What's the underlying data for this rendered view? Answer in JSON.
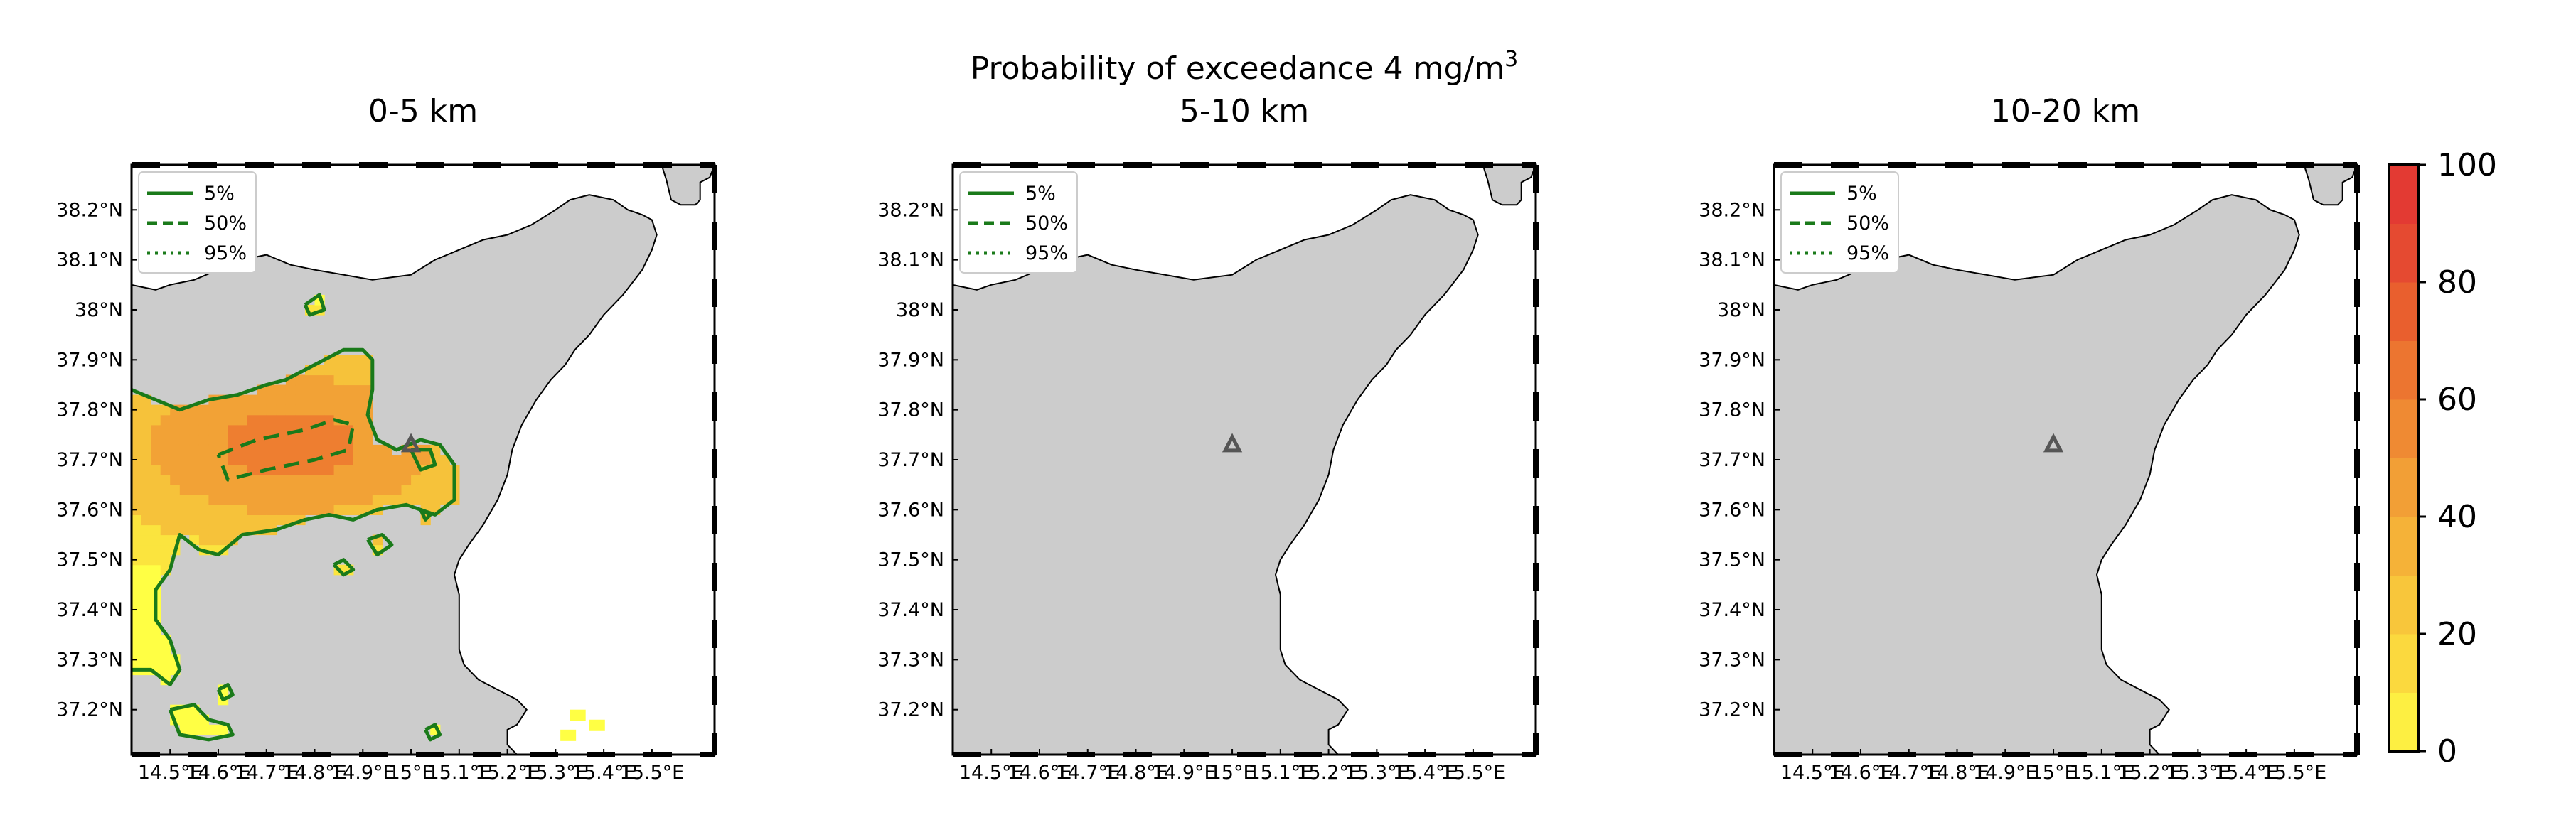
{
  "figure": {
    "suptitle": "Probability of exceedance 4 mg/m",
    "suptitle_sup": "3"
  },
  "legend": [
    {
      "label": "5%",
      "style": "solid"
    },
    {
      "label": "50%",
      "style": "dashed"
    },
    {
      "label": "95%",
      "style": "dotted"
    }
  ],
  "colors": {
    "land": "#cccccc",
    "sea": "#ffffff",
    "contour": "#1a7a1a",
    "vent_marker": "#555555",
    "scale": [
      "#ffff44",
      "#fbe43e",
      "#f6c23a",
      "#f2a236",
      "#ee7e30",
      "#e95a2e",
      "#e33a33"
    ]
  },
  "chart_data": [
    {
      "type": "heatmap",
      "title": "0-5 km",
      "xlim": [
        14.42,
        15.63
      ],
      "ylim": [
        37.11,
        38.29
      ],
      "x_ticks": [
        "14.5°E",
        "14.6°E",
        "14.7°E",
        "14.8°E",
        "14.9°E",
        "15°E",
        "15.1°E",
        "15.2°E",
        "15.3°E",
        "15.4°E",
        "15.5°E"
      ],
      "y_ticks": [
        "38.2°N",
        "38.1°N",
        "38°N",
        "37.9°N",
        "37.8°N",
        "37.7°N",
        "37.6°N",
        "37.5°N",
        "37.4°N",
        "37.3°N",
        "37.2°N"
      ],
      "legend_placement": "top-left",
      "vent": [
        15.0,
        37.73
      ],
      "max_probability": 70,
      "contours": {
        "5%": [
          [
            [
              14.42,
              37.84
            ],
            [
              14.47,
              37.82
            ],
            [
              14.52,
              37.8
            ],
            [
              14.58,
              37.82
            ],
            [
              14.64,
              37.83
            ],
            [
              14.7,
              37.85
            ],
            [
              14.74,
              37.86
            ],
            [
              14.8,
              37.89
            ],
            [
              14.86,
              37.92
            ],
            [
              14.9,
              37.92
            ],
            [
              14.92,
              37.9
            ],
            [
              14.92,
              37.84
            ],
            [
              14.91,
              37.79
            ],
            [
              14.93,
              37.74
            ],
            [
              14.97,
              37.72
            ],
            [
              15.02,
              37.74
            ],
            [
              15.06,
              37.73
            ],
            [
              15.09,
              37.69
            ],
            [
              15.09,
              37.62
            ],
            [
              15.05,
              37.59
            ],
            [
              14.99,
              37.61
            ],
            [
              14.93,
              37.6
            ],
            [
              14.88,
              37.58
            ],
            [
              14.83,
              37.59
            ],
            [
              14.78,
              37.58
            ],
            [
              14.72,
              37.56
            ],
            [
              14.65,
              37.55
            ],
            [
              14.6,
              37.51
            ],
            [
              14.56,
              37.52
            ],
            [
              14.52,
              37.55
            ],
            [
              14.5,
              37.48
            ],
            [
              14.47,
              37.44
            ],
            [
              14.47,
              37.38
            ],
            [
              14.5,
              37.34
            ],
            [
              14.52,
              37.28
            ],
            [
              14.5,
              37.25
            ],
            [
              14.46,
              37.28
            ],
            [
              14.42,
              37.28
            ]
          ],
          [
            [
              14.78,
              38.01
            ],
            [
              14.81,
              38.03
            ],
            [
              14.82,
              38.0
            ],
            [
              14.79,
              37.99
            ],
            [
              14.78,
              38.01
            ]
          ],
          [
            [
              14.91,
              37.54
            ],
            [
              14.94,
              37.55
            ],
            [
              14.96,
              37.53
            ],
            [
              14.93,
              37.51
            ],
            [
              14.91,
              37.54
            ]
          ],
          [
            [
              14.84,
              37.49
            ],
            [
              14.86,
              37.5
            ],
            [
              14.88,
              37.48
            ],
            [
              14.86,
              37.47
            ],
            [
              14.84,
              37.49
            ]
          ],
          [
            [
              15.02,
              37.6
            ],
            [
              15.03,
              37.58
            ],
            [
              15.04,
              37.59
            ],
            [
              15.02,
              37.6
            ]
          ],
          [
            [
              14.6,
              37.24
            ],
            [
              14.62,
              37.25
            ],
            [
              14.63,
              37.23
            ],
            [
              14.61,
              37.22
            ],
            [
              14.6,
              37.24
            ]
          ],
          [
            [
              14.5,
              37.2
            ],
            [
              14.55,
              37.21
            ],
            [
              14.58,
              37.18
            ],
            [
              14.62,
              37.17
            ],
            [
              14.63,
              37.15
            ],
            [
              14.58,
              37.14
            ],
            [
              14.52,
              37.15
            ],
            [
              14.5,
              37.2
            ]
          ],
          [
            [
              15.03,
              37.16
            ],
            [
              15.05,
              37.17
            ],
            [
              15.06,
              37.15
            ],
            [
              15.04,
              37.14
            ],
            [
              15.03,
              37.16
            ]
          ],
          [
            [
              15.0,
              37.72
            ],
            [
              15.04,
              37.72
            ],
            [
              15.05,
              37.69
            ],
            [
              15.02,
              37.68
            ],
            [
              15.0,
              37.72
            ]
          ]
        ],
        "50%": [
          [
            [
              14.6,
              37.71
            ],
            [
              14.68,
              37.74
            ],
            [
              14.78,
              37.76
            ],
            [
              14.84,
              37.78
            ],
            [
              14.88,
              37.77
            ],
            [
              14.87,
              37.72
            ],
            [
              14.8,
              37.7
            ],
            [
              14.7,
              37.68
            ],
            [
              14.62,
              37.66
            ],
            [
              14.6,
              37.71
            ]
          ]
        ],
        "95%": []
      }
    },
    {
      "type": "heatmap",
      "title": "5-10 km",
      "xlim": [
        14.42,
        15.63
      ],
      "ylim": [
        37.11,
        38.29
      ],
      "x_ticks": [
        "14.5°E",
        "14.6°E",
        "14.7°E",
        "14.8°E",
        "14.9°E",
        "15°E",
        "15.1°E",
        "15.2°E",
        "15.3°E",
        "15.4°E",
        "15.5°E"
      ],
      "y_ticks": [
        "38.2°N",
        "38.1°N",
        "38°N",
        "37.9°N",
        "37.8°N",
        "37.7°N",
        "37.6°N",
        "37.5°N",
        "37.4°N",
        "37.3°N",
        "37.2°N"
      ],
      "legend_placement": "top-left",
      "vent": [
        15.0,
        37.73
      ],
      "max_probability": 0,
      "contours": {
        "5%": [],
        "50%": [],
        "95%": []
      }
    },
    {
      "type": "heatmap",
      "title": "10-20 km",
      "xlim": [
        14.42,
        15.63
      ],
      "ylim": [
        37.11,
        38.29
      ],
      "x_ticks": [
        "14.5°E",
        "14.6°E",
        "14.7°E",
        "14.8°E",
        "14.9°E",
        "15°E",
        "15.1°E",
        "15.2°E",
        "15.3°E",
        "15.4°E",
        "15.5°E"
      ],
      "y_ticks": [
        "38.2°N",
        "38.1°N",
        "38°N",
        "37.9°N",
        "37.8°N",
        "37.7°N",
        "37.6°N",
        "37.5°N",
        "37.4°N",
        "37.3°N",
        "37.2°N"
      ],
      "legend_placement": "top-left",
      "vent": [
        15.0,
        37.73
      ],
      "max_probability": 0,
      "contours": {
        "5%": [],
        "50%": [],
        "95%": []
      }
    }
  ],
  "colorbar": {
    "min": 0,
    "max": 100,
    "ticks": [
      "0",
      "20",
      "40",
      "60",
      "80",
      "100"
    ],
    "levels": [
      0,
      10,
      20,
      30,
      40,
      50,
      60,
      70,
      80,
      90,
      100
    ]
  }
}
